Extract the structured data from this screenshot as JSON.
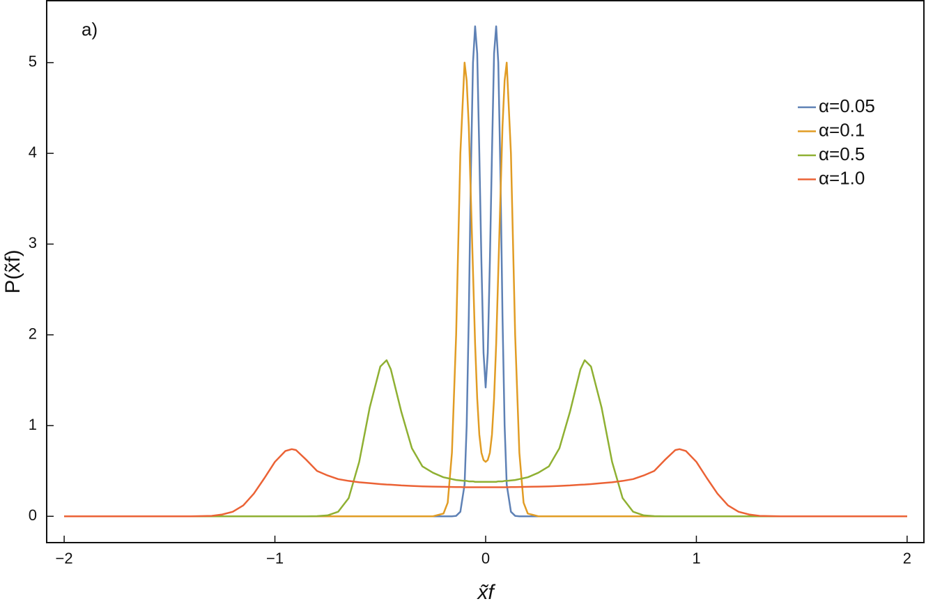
{
  "chart_data": {
    "type": "line",
    "annotation": "a)",
    "xlabel": "x̃f",
    "ylabel": "P(x̃f)",
    "x": [
      -2,
      -1.6,
      -1.4,
      -1.3,
      -1.25,
      -1.2,
      -1.15,
      -1.1,
      -1.05,
      -1.0,
      -0.95,
      -0.92,
      -0.9,
      -0.85,
      -0.8,
      -0.75,
      -0.7,
      -0.65,
      -0.6,
      -0.55,
      -0.5,
      -0.47,
      -0.45,
      -0.4,
      -0.35,
      -0.3,
      -0.25,
      -0.2,
      -0.18,
      -0.16,
      -0.14,
      -0.12,
      -0.1,
      -0.09,
      -0.08,
      -0.07,
      -0.06,
      -0.05,
      -0.04,
      -0.03,
      -0.02,
      -0.01,
      0,
      0.01,
      0.02,
      0.03,
      0.04,
      0.05,
      0.06,
      0.07,
      0.08,
      0.09,
      0.1,
      0.12,
      0.14,
      0.16,
      0.18,
      0.2,
      0.25,
      0.3,
      0.35,
      0.4,
      0.45,
      0.47,
      0.5,
      0.55,
      0.6,
      0.65,
      0.7,
      0.75,
      0.8,
      0.85,
      0.9,
      0.92,
      0.95,
      1.0,
      1.05,
      1.1,
      1.15,
      1.2,
      1.25,
      1.3,
      1.4,
      1.6,
      2
    ],
    "series": [
      {
        "name": "α=0.05",
        "color": "#5e81b5",
        "values": [
          0,
          0,
          0,
          0,
          0,
          0,
          0,
          0,
          0,
          0,
          0,
          0,
          0,
          0,
          0,
          0,
          0,
          0,
          0,
          0,
          0,
          0,
          0,
          0,
          0,
          0,
          0,
          0,
          0,
          0,
          0.005,
          0.05,
          0.35,
          1.0,
          2.2,
          3.8,
          5.0,
          5.4,
          5.1,
          4.0,
          2.8,
          1.8,
          1.42,
          1.8,
          2.8,
          4.0,
          5.1,
          5.4,
          5.0,
          3.8,
          2.2,
          1.0,
          0.35,
          0.05,
          0.005,
          0,
          0,
          0,
          0,
          0,
          0,
          0,
          0,
          0,
          0,
          0,
          0,
          0,
          0,
          0,
          0,
          0,
          0,
          0,
          0,
          0,
          0,
          0,
          0,
          0,
          0,
          0,
          0,
          0,
          0
        ]
      },
      {
        "name": "α=0.1",
        "color": "#e19c24",
        "values": [
          0,
          0,
          0,
          0,
          0,
          0,
          0,
          0,
          0,
          0,
          0,
          0,
          0,
          0,
          0,
          0,
          0,
          0,
          0,
          0,
          0,
          0,
          0,
          0,
          0,
          0,
          0,
          0.03,
          0.15,
          0.7,
          2.0,
          4.0,
          5.0,
          4.8,
          4.3,
          3.5,
          2.7,
          1.9,
          1.3,
          0.9,
          0.7,
          0.62,
          0.6,
          0.62,
          0.7,
          0.9,
          1.3,
          1.9,
          2.7,
          3.5,
          4.3,
          4.8,
          5.0,
          4.0,
          2.0,
          0.7,
          0.15,
          0.03,
          0,
          0,
          0,
          0,
          0,
          0,
          0,
          0,
          0,
          0,
          0,
          0,
          0,
          0,
          0,
          0,
          0,
          0,
          0,
          0,
          0,
          0,
          0,
          0,
          0,
          0,
          0
        ]
      },
      {
        "name": "α=0.5",
        "color": "#8fb032",
        "values": [
          0,
          0,
          0,
          0,
          0,
          0,
          0,
          0,
          0,
          0,
          0,
          0,
          0,
          0,
          0.002,
          0.01,
          0.05,
          0.2,
          0.6,
          1.2,
          1.65,
          1.72,
          1.62,
          1.15,
          0.75,
          0.55,
          0.48,
          0.43,
          0.42,
          0.41,
          0.4,
          0.395,
          0.39,
          0.39,
          0.385,
          0.385,
          0.385,
          0.38,
          0.38,
          0.38,
          0.38,
          0.38,
          0.38,
          0.38,
          0.38,
          0.38,
          0.38,
          0.38,
          0.385,
          0.385,
          0.385,
          0.39,
          0.39,
          0.395,
          0.4,
          0.41,
          0.42,
          0.43,
          0.48,
          0.55,
          0.75,
          1.15,
          1.62,
          1.72,
          1.65,
          1.2,
          0.6,
          0.2,
          0.05,
          0.01,
          0.002,
          0,
          0,
          0,
          0,
          0,
          0,
          0,
          0,
          0,
          0,
          0,
          0,
          0,
          0
        ]
      },
      {
        "name": "α=1.0",
        "color": "#eb6235",
        "values": [
          0,
          0,
          0,
          0.005,
          0.02,
          0.05,
          0.12,
          0.25,
          0.42,
          0.6,
          0.72,
          0.74,
          0.73,
          0.62,
          0.5,
          0.45,
          0.41,
          0.39,
          0.375,
          0.365,
          0.355,
          0.35,
          0.348,
          0.34,
          0.335,
          0.33,
          0.327,
          0.325,
          0.324,
          0.323,
          0.322,
          0.322,
          0.32,
          0.32,
          0.32,
          0.32,
          0.32,
          0.32,
          0.32,
          0.32,
          0.32,
          0.32,
          0.32,
          0.32,
          0.32,
          0.32,
          0.32,
          0.32,
          0.32,
          0.32,
          0.32,
          0.32,
          0.32,
          0.322,
          0.322,
          0.323,
          0.324,
          0.325,
          0.327,
          0.33,
          0.335,
          0.34,
          0.348,
          0.35,
          0.355,
          0.365,
          0.375,
          0.39,
          0.41,
          0.45,
          0.5,
          0.62,
          0.73,
          0.74,
          0.72,
          0.6,
          0.42,
          0.25,
          0.12,
          0.05,
          0.02,
          0.005,
          0,
          0,
          0
        ]
      }
    ],
    "xlim": [
      -2.083,
      2.083
    ],
    "ylim": [
      -0.29,
      5.69
    ],
    "xticks": [
      {
        "value": -2,
        "label": "−2"
      },
      {
        "value": -1,
        "label": "−1"
      },
      0,
      1,
      2
    ],
    "yticks": [
      0,
      1,
      2,
      3,
      4,
      5
    ],
    "legend": "upper right"
  }
}
